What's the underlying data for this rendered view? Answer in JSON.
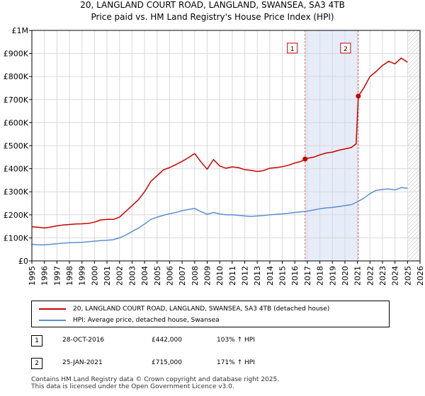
{
  "chart_data": {
    "type": "line",
    "title": "20, LANGLAND COURT ROAD, LANGLAND, SWANSEA, SA3 4TB",
    "subtitle": "Price paid vs. HM Land Registry's House Price Index (HPI)",
    "xlim": [
      1995,
      2026
    ],
    "ylim": [
      0,
      1000000
    ],
    "x_ticks": [
      "1995",
      "1996",
      "1997",
      "1998",
      "1999",
      "2000",
      "2001",
      "2002",
      "2003",
      "2004",
      "2005",
      "2006",
      "2007",
      "2008",
      "2009",
      "2010",
      "2011",
      "2012",
      "2013",
      "2014",
      "2015",
      "2016",
      "2017",
      "2018",
      "2019",
      "2020",
      "2021",
      "2022",
      "2023",
      "2024",
      "2025",
      "2026"
    ],
    "y_ticks": [
      {
        "value": 0,
        "label": "£0"
      },
      {
        "value": 100000,
        "label": "£100K"
      },
      {
        "value": 200000,
        "label": "£200K"
      },
      {
        "value": 300000,
        "label": "£300K"
      },
      {
        "value": 400000,
        "label": "£400K"
      },
      {
        "value": 500000,
        "label": "£500K"
      },
      {
        "value": 600000,
        "label": "£600K"
      },
      {
        "value": 700000,
        "label": "£700K"
      },
      {
        "value": 800000,
        "label": "£800K"
      },
      {
        "value": 900000,
        "label": "£900K"
      },
      {
        "value": 1000000,
        "label": "£1M"
      }
    ],
    "grid": true,
    "series": [
      {
        "name": "20, LANGLAND COURT ROAD, LANGLAND, SWANSEA, SA3 4TB (detached house)",
        "color": "#cc0000",
        "points": [
          [
            1995.0,
            148000
          ],
          [
            1995.5,
            146000
          ],
          [
            1996.0,
            143000
          ],
          [
            1996.5,
            147000
          ],
          [
            1997.0,
            152000
          ],
          [
            1997.5,
            156000
          ],
          [
            1998.0,
            158000
          ],
          [
            1998.5,
            160000
          ],
          [
            1999.0,
            161000
          ],
          [
            1999.5,
            163000
          ],
          [
            2000.0,
            168000
          ],
          [
            2000.5,
            178000
          ],
          [
            2001.0,
            180000
          ],
          [
            2001.5,
            180000
          ],
          [
            2002.0,
            190000
          ],
          [
            2002.5,
            215000
          ],
          [
            2003.0,
            240000
          ],
          [
            2003.5,
            265000
          ],
          [
            2004.0,
            300000
          ],
          [
            2004.5,
            345000
          ],
          [
            2005.0,
            370000
          ],
          [
            2005.5,
            395000
          ],
          [
            2006.0,
            405000
          ],
          [
            2006.5,
            418000
          ],
          [
            2007.0,
            432000
          ],
          [
            2007.5,
            448000
          ],
          [
            2008.0,
            466000
          ],
          [
            2008.5,
            430000
          ],
          [
            2009.0,
            398000
          ],
          [
            2009.5,
            440000
          ],
          [
            2010.0,
            412000
          ],
          [
            2010.5,
            402000
          ],
          [
            2011.0,
            408000
          ],
          [
            2011.5,
            405000
          ],
          [
            2012.0,
            396000
          ],
          [
            2012.5,
            393000
          ],
          [
            2013.0,
            388000
          ],
          [
            2013.5,
            392000
          ],
          [
            2014.0,
            402000
          ],
          [
            2014.5,
            405000
          ],
          [
            2015.0,
            409000
          ],
          [
            2015.5,
            415000
          ],
          [
            2016.0,
            425000
          ],
          [
            2016.5,
            432000
          ],
          [
            2016.82,
            442000
          ],
          [
            2017.0,
            445000
          ],
          [
            2017.5,
            450000
          ],
          [
            2018.0,
            460000
          ],
          [
            2018.5,
            468000
          ],
          [
            2019.0,
            472000
          ],
          [
            2019.5,
            480000
          ],
          [
            2020.0,
            486000
          ],
          [
            2020.5,
            492000
          ],
          [
            2020.9,
            508000
          ],
          [
            2021.07,
            715000
          ],
          [
            2021.5,
            750000
          ],
          [
            2022.0,
            800000
          ],
          [
            2022.5,
            822000
          ],
          [
            2023.0,
            848000
          ],
          [
            2023.5,
            866000
          ],
          [
            2024.0,
            855000
          ],
          [
            2024.5,
            880000
          ],
          [
            2025.0,
            862000
          ]
        ]
      },
      {
        "name": "HPI: Average price, detached house, Swansea",
        "color": "#5b8fd0",
        "points": [
          [
            1995.0,
            72000
          ],
          [
            1995.5,
            70000
          ],
          [
            1996.0,
            70000
          ],
          [
            1996.5,
            72000
          ],
          [
            1997.0,
            75000
          ],
          [
            1997.5,
            77000
          ],
          [
            1998.0,
            79000
          ],
          [
            1998.5,
            80000
          ],
          [
            1999.0,
            81000
          ],
          [
            1999.5,
            83000
          ],
          [
            2000.0,
            86000
          ],
          [
            2000.5,
            88000
          ],
          [
            2001.0,
            90000
          ],
          [
            2001.5,
            92000
          ],
          [
            2002.0,
            100000
          ],
          [
            2002.5,
            112000
          ],
          [
            2003.0,
            128000
          ],
          [
            2003.5,
            142000
          ],
          [
            2004.0,
            160000
          ],
          [
            2004.5,
            180000
          ],
          [
            2005.0,
            190000
          ],
          [
            2005.5,
            198000
          ],
          [
            2006.0,
            205000
          ],
          [
            2006.5,
            210000
          ],
          [
            2007.0,
            218000
          ],
          [
            2007.5,
            223000
          ],
          [
            2008.0,
            228000
          ],
          [
            2008.5,
            214000
          ],
          [
            2009.0,
            202000
          ],
          [
            2009.5,
            210000
          ],
          [
            2010.0,
            204000
          ],
          [
            2010.5,
            200000
          ],
          [
            2011.0,
            200000
          ],
          [
            2011.5,
            198000
          ],
          [
            2012.0,
            195000
          ],
          [
            2012.5,
            193000
          ],
          [
            2013.0,
            195000
          ],
          [
            2013.5,
            197000
          ],
          [
            2014.0,
            200000
          ],
          [
            2014.5,
            202000
          ],
          [
            2015.0,
            204000
          ],
          [
            2015.5,
            207000
          ],
          [
            2016.0,
            210000
          ],
          [
            2016.5,
            213000
          ],
          [
            2017.0,
            216000
          ],
          [
            2017.5,
            221000
          ],
          [
            2018.0,
            226000
          ],
          [
            2018.5,
            230000
          ],
          [
            2019.0,
            232000
          ],
          [
            2019.5,
            236000
          ],
          [
            2020.0,
            240000
          ],
          [
            2020.5,
            244000
          ],
          [
            2021.0,
            256000
          ],
          [
            2021.5,
            272000
          ],
          [
            2022.0,
            292000
          ],
          [
            2022.5,
            306000
          ],
          [
            2023.0,
            310000
          ],
          [
            2023.5,
            312000
          ],
          [
            2024.0,
            308000
          ],
          [
            2024.5,
            318000
          ],
          [
            2025.0,
            315000
          ]
        ]
      }
    ],
    "transactions": [
      {
        "id": "1",
        "x": 2016.82,
        "value": 442000,
        "date": "28-OCT-2016",
        "price": "£442,000",
        "hpi": "103% ↑ HPI"
      },
      {
        "id": "2",
        "x": 2021.07,
        "value": 715000,
        "date": "25-JAN-2021",
        "price": "£715,000",
        "hpi": "171% ↑ HPI"
      }
    ],
    "shaded_range": [
      2016.82,
      2021.07
    ],
    "hatched_from": 2025.0
  },
  "footer": {
    "line1": "Contains HM Land Registry data © Crown copyright and database right 2025.",
    "line2": "This data is licensed under the Open Government Licence v3.0."
  }
}
